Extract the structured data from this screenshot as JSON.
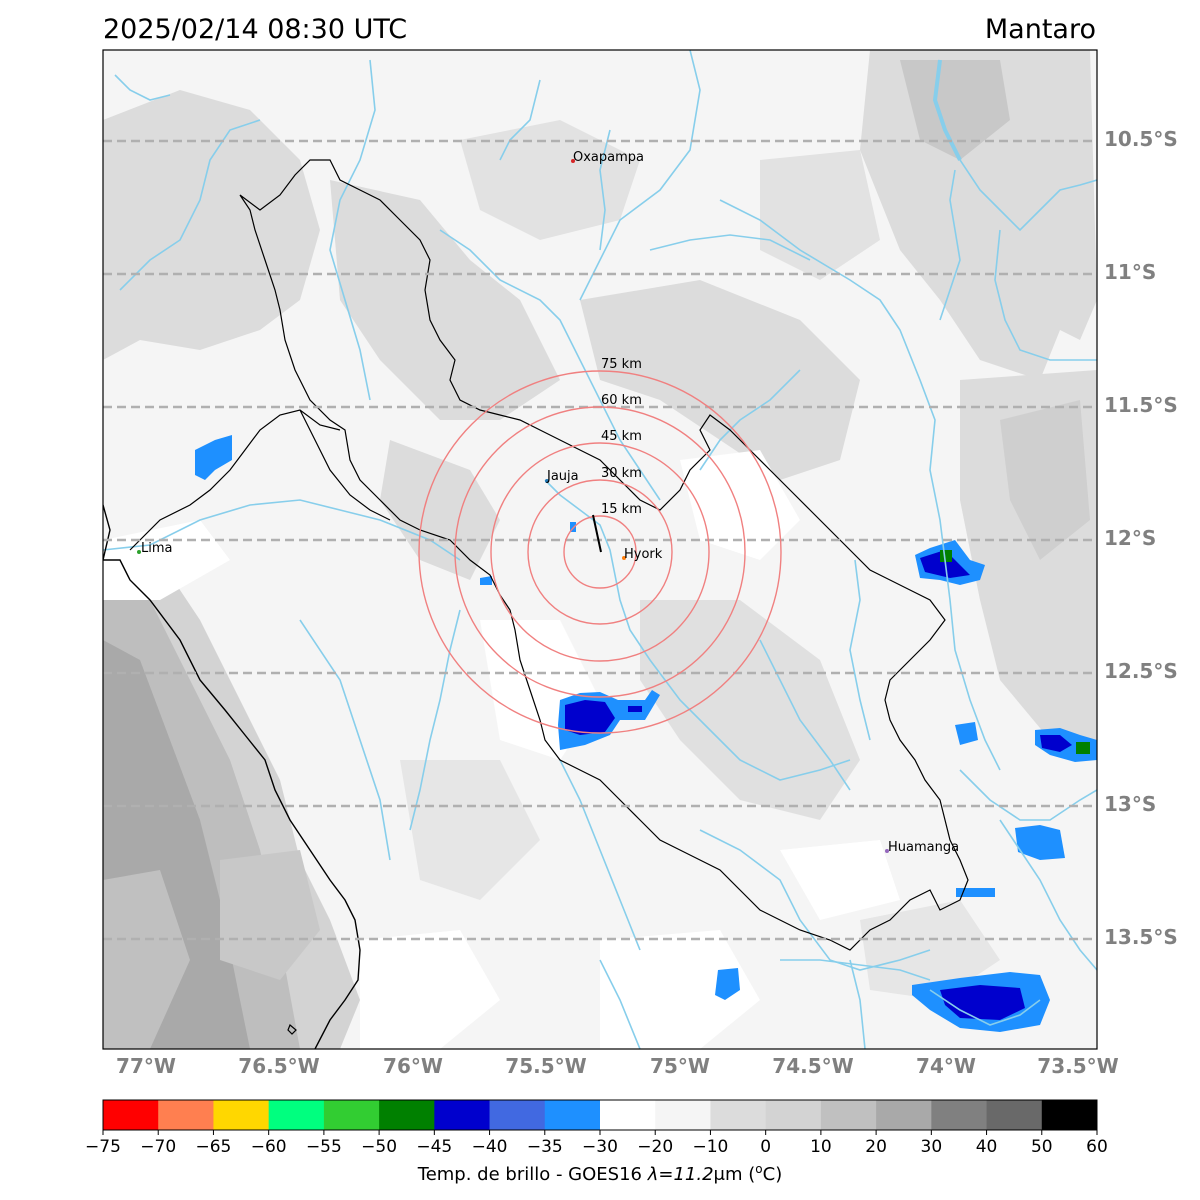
{
  "title": {
    "timestamp": "2025/02/14 08:30 UTC",
    "region": "Mantaro"
  },
  "map": {
    "lat_labels": [
      "10.5°S",
      "11°S",
      "11.5°S",
      "12°S",
      "12.5°S",
      "13°S",
      "13.5°S"
    ],
    "lon_labels": [
      "77°W",
      "76.5°W",
      "76°W",
      "75.5°W",
      "75°W",
      "74.5°W",
      "74°W",
      "73.5°W"
    ],
    "cities": [
      {
        "name": "Oxapampa",
        "color": "#d62728"
      },
      {
        "name": "Jauja",
        "color": "#1f77b4"
      },
      {
        "name": "Hyork",
        "color": "#ff7f0e"
      },
      {
        "name": "Lima",
        "color": "#2ca02c"
      },
      {
        "name": "Huamanga",
        "color": "#9467bd"
      }
    ],
    "rings": [
      "15 km",
      "30 km",
      "45 km",
      "60 km",
      "75 km"
    ],
    "ring_color": "#f08080",
    "river_color": "#87ceeb",
    "grid_color": "#b0b0b0"
  },
  "colorbar": {
    "ticks": [
      "−75",
      "−70",
      "−65",
      "−60",
      "−55",
      "−50",
      "−45",
      "−40",
      "−35",
      "−30",
      "−20",
      "−10",
      "0",
      "10",
      "20",
      "30",
      "40",
      "50",
      "60"
    ],
    "colors": [
      "#ff0000",
      "#ff7f50",
      "#ffd700",
      "#00ff7f",
      "#32cd32",
      "#008000",
      "#0000cd",
      "#4169e1",
      "#1e90ff",
      "#ffffff",
      "#f5f5f5",
      "#dcdcdc",
      "#d3d3d3",
      "#c0c0c0",
      "#a9a9a9",
      "#808080",
      "#696969",
      "#000000"
    ],
    "label_prefix": "Temp. de brillo - GOES16 ",
    "label_lambda": "λ=11.2",
    "label_unit": "μm (",
    "label_deg": "o",
    "label_c": "C)"
  }
}
